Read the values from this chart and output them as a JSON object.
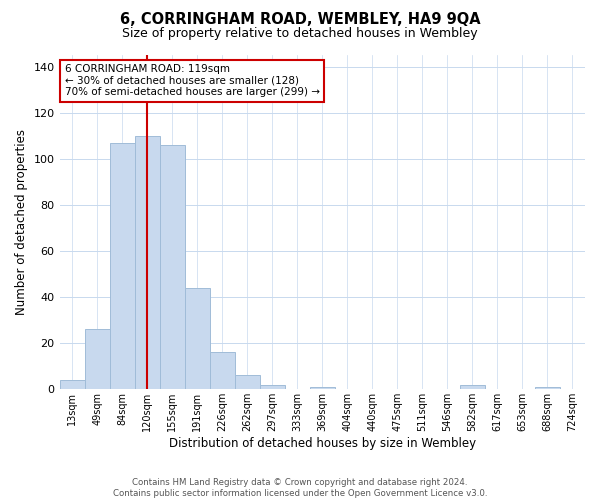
{
  "title": "6, CORRINGHAM ROAD, WEMBLEY, HA9 9QA",
  "subtitle": "Size of property relative to detached houses in Wembley",
  "xlabel": "Distribution of detached houses by size in Wembley",
  "ylabel": "Number of detached properties",
  "bar_labels": [
    "13sqm",
    "49sqm",
    "84sqm",
    "120sqm",
    "155sqm",
    "191sqm",
    "226sqm",
    "262sqm",
    "297sqm",
    "333sqm",
    "369sqm",
    "404sqm",
    "440sqm",
    "475sqm",
    "511sqm",
    "546sqm",
    "582sqm",
    "617sqm",
    "653sqm",
    "688sqm",
    "724sqm"
  ],
  "bar_values": [
    4,
    26,
    107,
    110,
    106,
    44,
    16,
    6,
    2,
    0,
    1,
    0,
    0,
    0,
    0,
    0,
    2,
    0,
    0,
    1,
    0
  ],
  "bar_color": "#c8d9ee",
  "bar_edge_color": "#a0bcd8",
  "vline_color": "#cc0000",
  "vline_position": 3.5,
  "ylim": [
    0,
    145
  ],
  "yticks": [
    0,
    20,
    40,
    60,
    80,
    100,
    120,
    140
  ],
  "annotation_title": "6 CORRINGHAM ROAD: 119sqm",
  "annotation_line1": "← 30% of detached houses are smaller (128)",
  "annotation_line2": "70% of semi-detached houses are larger (299) →",
  "box_color": "#ffffff",
  "box_edge_color": "#cc0000",
  "footer_line1": "Contains HM Land Registry data © Crown copyright and database right 2024.",
  "footer_line2": "Contains public sector information licensed under the Open Government Licence v3.0.",
  "background_color": "#ffffff",
  "grid_color": "#c8d9ee"
}
